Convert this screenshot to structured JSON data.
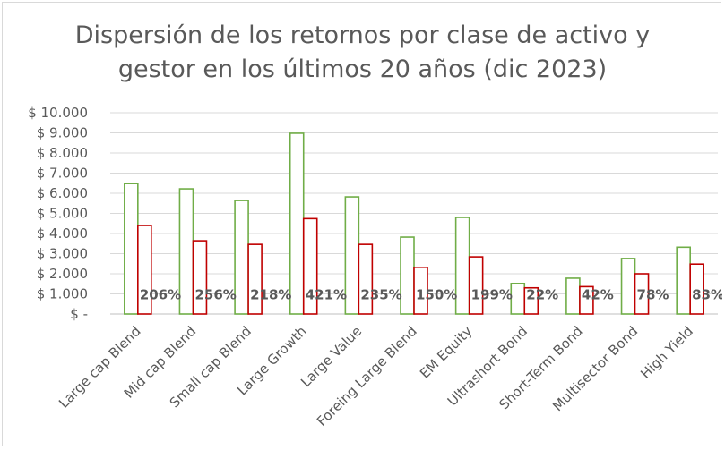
{
  "chart_data": {
    "type": "bar",
    "title": [
      "Dispersión de los retornos por clase de activo y",
      "gestor en los últimos 20 años (dic 2023)"
    ],
    "categories": [
      "Large cap Blend",
      "Mid cap Blend",
      "Small cap Blend",
      "Large Growth",
      "Large Value",
      "Foreing Large Blend",
      "EM Equity",
      "Ultrashort Bond",
      "Short-Term Bond",
      "Multisector Bond",
      "High Yield"
    ],
    "series": [
      {
        "values": [
          6480,
          6220,
          5640,
          8980,
          5820,
          3820,
          4800,
          1520,
          1780,
          2760,
          3320
        ],
        "color": "#70ad47"
      },
      {
        "values": [
          4400,
          3640,
          3460,
          4740,
          3460,
          2320,
          2840,
          1300,
          1360,
          2000,
          2480
        ],
        "color": "#c00000"
      }
    ],
    "data_labels": [
      "206%",
      "256%",
      "218%",
      "421%",
      "235%",
      "150%",
      "199%",
      "22%",
      "42%",
      "78%",
      "83%"
    ],
    "y_tick_labels": [
      "$ -",
      "$ 1.000",
      "$ 2.000",
      "$ 3.000",
      "$ 4.000",
      "$ 5.000",
      "$ 6.000",
      "$ 7.000",
      "$ 8.000",
      "$ 9.000",
      "$ 10.000"
    ],
    "ylim": [
      0,
      10000
    ],
    "ytick_step": 1000,
    "grid": true,
    "legend": "none"
  }
}
